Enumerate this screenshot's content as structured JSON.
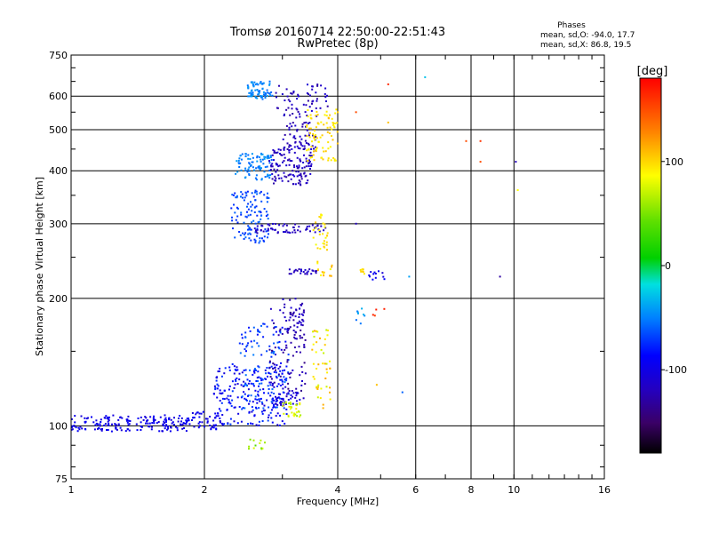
{
  "chart_data": {
    "type": "scatter",
    "title": "Tromsø 20160714 22:50:00-22:51:43",
    "subtitle": "RwPretec (8p)",
    "xlabel": "Frequency [MHz]",
    "ylabel": "Stationary phase Virtual Height [km]",
    "x_scale": "log",
    "y_scale": "log",
    "xlim": [
      1,
      16
    ],
    "ylim": [
      75,
      750
    ],
    "grid": true,
    "x_ticks": [
      1,
      2,
      4,
      6,
      8,
      10,
      16
    ],
    "x_tick_labels": [
      "1",
      "2",
      "4",
      "6",
      "8",
      "10",
      "16"
    ],
    "y_ticks": [
      75,
      100,
      200,
      300,
      400,
      500,
      600,
      750
    ],
    "y_tick_labels": [
      "75",
      "100",
      "200",
      "300",
      "400",
      "500",
      "600",
      "750"
    ],
    "phase_stats": {
      "title": "Phases",
      "line_o": "mean, sd,O: -94.0, 17.7",
      "line_x": "mean, sd,X:  86.8, 19.5"
    },
    "colorbar": {
      "label": "[deg]",
      "range": [
        -180,
        180
      ],
      "ticks": [
        100,
        0,
        -100
      ],
      "tick_labels": [
        "100",
        "0",
        "-100"
      ]
    },
    "clusters": [
      {
        "f": [
          1.0,
          1.85
        ],
        "h": [
          97,
          106
        ],
        "phase": [
          -110,
          -90
        ],
        "n": 180
      },
      {
        "f": [
          1.85,
          2.15
        ],
        "h": [
          98,
          108
        ],
        "phase": [
          -110,
          -90
        ],
        "n": 40
      },
      {
        "f": [
          2.1,
          3.1
        ],
        "h": [
          100,
          140
        ],
        "phase": [
          -110,
          -70
        ],
        "n": 220
      },
      {
        "f": [
          2.4,
          3.1
        ],
        "h": [
          110,
          175
        ],
        "phase": [
          -90,
          -50
        ],
        "n": 120
      },
      {
        "f": [
          2.8,
          3.4
        ],
        "h": [
          120,
          190
        ],
        "phase": [
          -140,
          -110
        ],
        "n": 90
      },
      {
        "f": [
          3.0,
          3.4
        ],
        "h": [
          160,
          200
        ],
        "phase": [
          -130,
          -110
        ],
        "n": 40
      },
      {
        "f": [
          2.9,
          3.35
        ],
        "h": [
          112,
          120
        ],
        "phase": [
          -120,
          -100
        ],
        "n": 35
      },
      {
        "f": [
          3.0,
          3.3
        ],
        "h": [
          105,
          114
        ],
        "phase": [
          60,
          100
        ],
        "n": 30
      },
      {
        "f": [
          2.5,
          2.75
        ],
        "h": [
          88,
          93
        ],
        "phase": [
          30,
          80
        ],
        "n": 12
      },
      {
        "f": [
          3.5,
          3.85
        ],
        "h": [
          110,
          170
        ],
        "phase": [
          70,
          120
        ],
        "n": 45
      },
      {
        "f": [
          2.35,
          2.85
        ],
        "h": [
          380,
          440
        ],
        "phase": [
          -60,
          -40
        ],
        "n": 90
      },
      {
        "f": [
          2.3,
          2.8
        ],
        "h": [
          270,
          360
        ],
        "phase": [
          -80,
          -55
        ],
        "n": 120
      },
      {
        "f": [
          2.5,
          2.85
        ],
        "h": [
          590,
          650
        ],
        "phase": [
          -60,
          -40
        ],
        "n": 70
      },
      {
        "f": [
          2.8,
          3.5
        ],
        "h": [
          370,
          450
        ],
        "phase": [
          -130,
          -110
        ],
        "n": 120
      },
      {
        "f": [
          3.0,
          3.6
        ],
        "h": [
          440,
          560
        ],
        "phase": [
          -130,
          -110
        ],
        "n": 80
      },
      {
        "f": [
          2.9,
          3.8
        ],
        "h": [
          560,
          640
        ],
        "phase": [
          -130,
          -110
        ],
        "n": 50
      },
      {
        "f": [
          3.4,
          4.0
        ],
        "h": [
          420,
          560
        ],
        "phase": [
          90,
          110
        ],
        "n": 90
      },
      {
        "f": [
          2.6,
          3.8
        ],
        "h": [
          285,
          300
        ],
        "phase": [
          -125,
          -110
        ],
        "n": 60
      },
      {
        "f": [
          3.1,
          3.6
        ],
        "h": [
          228,
          235
        ],
        "phase": [
          -130,
          -110
        ],
        "n": 25
      },
      {
        "f": [
          3.5,
          3.8
        ],
        "h": [
          260,
          320
        ],
        "phase": [
          85,
          110
        ],
        "n": 30
      },
      {
        "f": [
          3.6,
          3.9
        ],
        "h": [
          225,
          245
        ],
        "phase": [
          85,
          120
        ],
        "n": 15
      },
      {
        "f": [
          4.5,
          4.6
        ],
        "h": [
          225,
          235
        ],
        "phase": [
          90,
          110
        ],
        "n": 8
      },
      {
        "f": [
          4.7,
          5.1
        ],
        "h": [
          220,
          235
        ],
        "phase": [
          -110,
          -90
        ],
        "n": 12
      },
      {
        "f": [
          4.4,
          4.7
        ],
        "h": [
          170,
          190
        ],
        "phase": [
          -60,
          -30
        ],
        "n": 8
      },
      {
        "f": [
          4.8,
          5.1
        ],
        "h": [
          180,
          190
        ],
        "phase": [
          150,
          170
        ],
        "n": 4
      }
    ],
    "sparse_points": [
      {
        "x": 5.2,
        "y": 640,
        "phase": 165
      },
      {
        "x": 6.3,
        "y": 665,
        "phase": -30
      },
      {
        "x": 4.4,
        "y": 550,
        "phase": 150
      },
      {
        "x": 5.2,
        "y": 520,
        "phase": 110
      },
      {
        "x": 7.8,
        "y": 470,
        "phase": 150
      },
      {
        "x": 8.4,
        "y": 470,
        "phase": 160
      },
      {
        "x": 8.4,
        "y": 420,
        "phase": 150
      },
      {
        "x": 10.1,
        "y": 420,
        "phase": -120
      },
      {
        "x": 10.2,
        "y": 360,
        "phase": 90
      },
      {
        "x": 9.3,
        "y": 225,
        "phase": -130
      },
      {
        "x": 5.8,
        "y": 225,
        "phase": -40
      },
      {
        "x": 5.6,
        "y": 120,
        "phase": -60
      },
      {
        "x": 4.9,
        "y": 125,
        "phase": 110
      },
      {
        "x": 4.4,
        "y": 300,
        "phase": -120
      }
    ]
  }
}
